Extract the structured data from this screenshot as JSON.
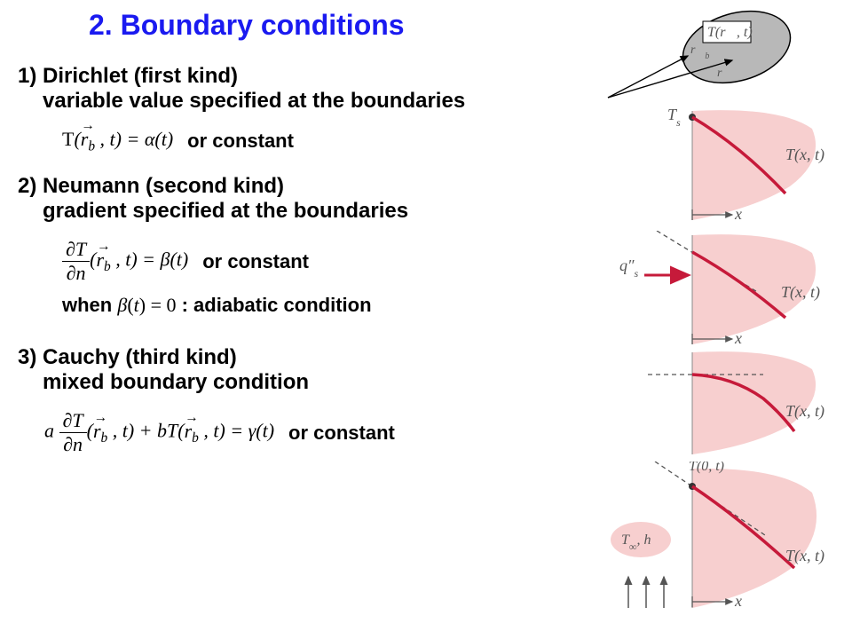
{
  "title": "2. Boundary conditions",
  "sections": {
    "dirichlet": {
      "head": "1) Dirichlet (first kind)",
      "body": "variable value specified at the boundaries",
      "eq_html": "<span class='rm'>T</span>(<span class='vec'><span class='arrow'>→</span>r</span><span class='sub'>b</span> , t) = α(t)",
      "orconst": "or constant"
    },
    "neumann": {
      "head": "2) Neumann (second kind)",
      "body": "gradient specified at the boundaries",
      "eq_html": "<span class='frac'><span class='num'>∂T</span><span class='den'>∂n</span></span>(<span class='vec'><span class='arrow'>→</span>r</span><span class='sub'>b</span> , t) = β(t)",
      "orconst": "or constant",
      "when_prefix": "when ",
      "when_math": "β(t) = 0",
      "when_suffix": " : adiabatic condition"
    },
    "cauchy": {
      "head": "3) Cauchy (third kind)",
      "body": "mixed boundary condition",
      "eq_html": "a <span class='frac'><span class='num'>∂T</span><span class='den'>∂n</span></span>(<span class='vec'><span class='arrow'>→</span>r</span><span class='sub'>b</span> , t) + bT(<span class='vec'><span class='arrow'>→</span>r</span><span class='sub'>b</span> , t) = γ(t)",
      "orconst": "or constant"
    }
  },
  "diagrams": {
    "domain": {
      "label_T": "T(r⃗, t)",
      "label_rb": "r⃗_b",
      "label_r": "r⃗",
      "ellipse_fill": "#b8b8b8",
      "stroke": "#000000"
    },
    "common": {
      "body_fill": "#f7cfcf",
      "curve_stroke": "#c61a3a",
      "curve_width": 3.0,
      "axis_stroke": "#555555",
      "text_color": "#555555",
      "T_label": "T(x, t)",
      "x_label": "x"
    },
    "d1": {
      "Ts_label": "T_s"
    },
    "d2": {
      "qs_label": "q″_s"
    },
    "d3": {},
    "d4": {
      "T0_label": "T(0, t)",
      "Tinf_label": "T_∞, h"
    }
  },
  "colors": {
    "title": "#1a1af0",
    "text": "#000000",
    "bg": "#ffffff"
  },
  "fonts": {
    "title_size": 32,
    "body_size": 24,
    "eq_size": 22,
    "diagram_label_size": 18
  }
}
